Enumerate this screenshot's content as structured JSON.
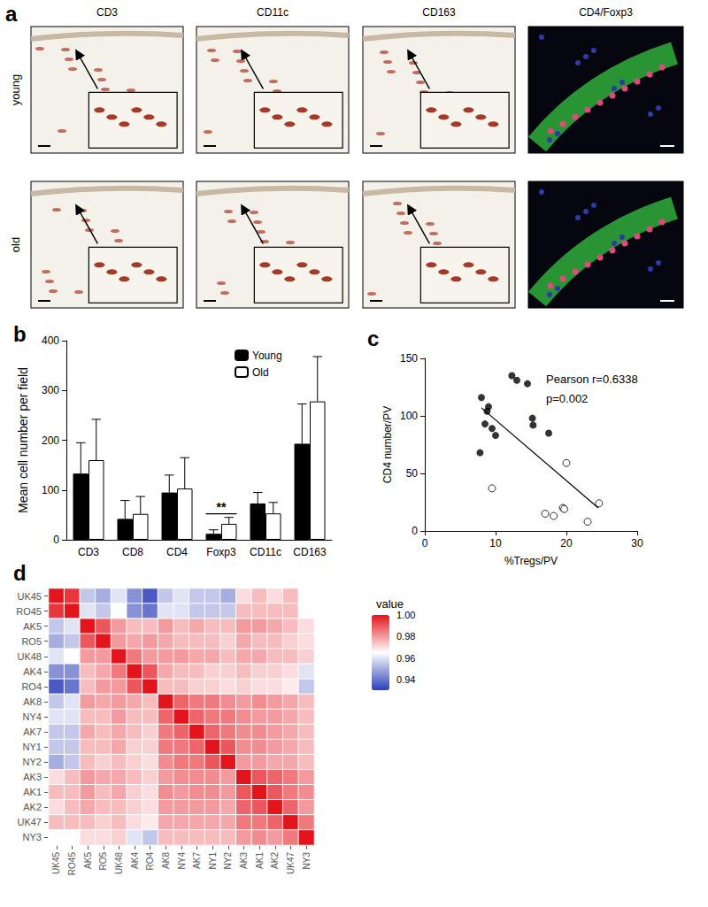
{
  "figure_panel_a": {
    "letter": "a",
    "columns": [
      "CD3",
      "CD11c",
      "CD163",
      "CD4/Foxp3"
    ],
    "rows": [
      "young",
      "old"
    ]
  },
  "chart_data": [
    {
      "panel": "b",
      "type": "bar",
      "categories": [
        "CD3",
        "CD8",
        "CD4",
        "Foxp3",
        "CD11c",
        "CD163"
      ],
      "series": [
        {
          "name": "Young",
          "color": "#000000",
          "values": [
            133,
            42,
            95,
            12,
            73,
            193
          ],
          "errors": [
            62,
            37,
            35,
            8,
            22,
            80
          ]
        },
        {
          "name": "Old",
          "color": "#ffffff",
          "values": [
            160,
            52,
            103,
            32,
            53,
            278
          ],
          "errors": [
            82,
            35,
            62,
            13,
            22,
            90
          ]
        }
      ],
      "ylabel": "Mean cell number per field",
      "ylim": [
        0,
        400
      ],
      "yticks": [
        0,
        100,
        200,
        300,
        400
      ],
      "legend": "upper right",
      "grid": false,
      "annotations": [
        {
          "text": "**",
          "category": "Foxp3"
        }
      ]
    },
    {
      "panel": "c",
      "type": "scatter",
      "xlabel": "%Tregs/PV",
      "ylabel": "CD4 number/PV",
      "xlim": [
        0,
        30
      ],
      "xticks": [
        0,
        10,
        20,
        30
      ],
      "ylim": [
        0,
        150
      ],
      "yticks": [
        0,
        50,
        100,
        150
      ],
      "grid": false,
      "annotations": [
        "Pearson r=0.6338",
        "p=0.002"
      ],
      "series": [
        {
          "type": "scatter",
          "marker": "filled",
          "color": "#000000",
          "x": [
            7.8,
            8,
            8.5,
            8.8,
            9,
            9.5,
            10,
            12.3,
            13,
            14.5,
            15.2,
            15.3,
            17.5
          ],
          "values": [
            68,
            116,
            93,
            104,
            108,
            89,
            83,
            135,
            131,
            128,
            98,
            92,
            85
          ]
        },
        {
          "type": "scatter",
          "marker": "open",
          "color": "#000000",
          "x": [
            9.5,
            17,
            18.2,
            19.5,
            19.7,
            20,
            23,
            24.6
          ],
          "values": [
            37,
            15,
            13,
            20,
            19,
            59,
            8,
            24
          ]
        },
        {
          "type": "line",
          "color": "#000000",
          "x": [
            8,
            24.5
          ],
          "values": [
            107,
            20
          ]
        }
      ]
    },
    {
      "panel": "d",
      "type": "heatmap",
      "rows": [
        "UK45",
        "RO45",
        "AK5",
        "RO5",
        "UK48",
        "AK4",
        "RO4",
        "AK8",
        "NY4",
        "AK7",
        "NY1",
        "NY2",
        "AK3",
        "AK1",
        "AK2",
        "UK47",
        "NY3"
      ],
      "columns": [
        "UK45",
        "RO45",
        "AK5",
        "RO5",
        "UK48",
        "AK4",
        "RO4",
        "AK8",
        "NY4",
        "AK7",
        "NY1",
        "NY2",
        "AK3",
        "AK1",
        "AK2",
        "UK47",
        "NY3"
      ],
      "cells": [
        [
          1,
          0.995,
          0.955,
          0.95,
          0.96,
          0.945,
          0.935,
          0.955,
          0.96,
          0.955,
          0.955,
          0.95,
          0.97,
          0.975,
          0.97,
          0.975,
          0.965
        ],
        [
          0.995,
          1,
          0.96,
          0.955,
          0.965,
          0.945,
          0.94,
          0.96,
          0.96,
          0.955,
          0.955,
          0.955,
          0.975,
          0.975,
          0.975,
          0.975,
          0.965
        ],
        [
          0.955,
          0.96,
          1,
          0.99,
          0.98,
          0.975,
          0.975,
          0.98,
          0.975,
          0.978,
          0.975,
          0.975,
          0.98,
          0.98,
          0.978,
          0.975,
          0.97
        ],
        [
          0.95,
          0.955,
          0.99,
          1,
          0.98,
          0.978,
          0.98,
          0.978,
          0.975,
          0.975,
          0.975,
          0.972,
          0.978,
          0.975,
          0.975,
          0.972,
          0.97
        ],
        [
          0.96,
          0.965,
          0.98,
          0.98,
          1,
          0.985,
          0.98,
          0.98,
          0.98,
          0.978,
          0.978,
          0.975,
          0.978,
          0.978,
          0.975,
          0.975,
          0.972
        ],
        [
          0.945,
          0.945,
          0.975,
          0.978,
          0.985,
          1,
          0.99,
          0.978,
          0.975,
          0.975,
          0.972,
          0.972,
          0.975,
          0.972,
          0.972,
          0.97,
          0.96
        ],
        [
          0.935,
          0.94,
          0.975,
          0.98,
          0.98,
          0.99,
          1,
          0.975,
          0.975,
          0.972,
          0.972,
          0.97,
          0.972,
          0.97,
          0.97,
          0.968,
          0.955
        ],
        [
          0.955,
          0.96,
          0.98,
          0.978,
          0.98,
          0.978,
          0.975,
          1,
          0.988,
          0.985,
          0.985,
          0.982,
          0.98,
          0.982,
          0.98,
          0.978,
          0.975
        ],
        [
          0.96,
          0.96,
          0.975,
          0.975,
          0.98,
          0.975,
          0.975,
          0.988,
          1,
          0.988,
          0.985,
          0.985,
          0.982,
          0.98,
          0.98,
          0.978,
          0.975
        ],
        [
          0.955,
          0.955,
          0.978,
          0.975,
          0.978,
          0.975,
          0.972,
          0.985,
          0.988,
          1,
          0.988,
          0.985,
          0.982,
          0.982,
          0.98,
          0.978,
          0.975
        ],
        [
          0.955,
          0.955,
          0.975,
          0.975,
          0.978,
          0.972,
          0.972,
          0.985,
          0.985,
          0.988,
          1,
          0.99,
          0.982,
          0.982,
          0.98,
          0.978,
          0.975
        ],
        [
          0.95,
          0.955,
          0.975,
          0.972,
          0.975,
          0.972,
          0.97,
          0.982,
          0.985,
          0.985,
          0.99,
          1,
          0.98,
          0.98,
          0.978,
          0.978,
          0.975
        ],
        [
          0.97,
          0.975,
          0.98,
          0.978,
          0.978,
          0.975,
          0.972,
          0.98,
          0.982,
          0.982,
          0.982,
          0.98,
          1,
          0.99,
          0.988,
          0.985,
          0.98
        ],
        [
          0.975,
          0.975,
          0.98,
          0.975,
          0.978,
          0.972,
          0.97,
          0.982,
          0.98,
          0.982,
          0.982,
          0.98,
          0.99,
          1,
          0.99,
          0.985,
          0.982
        ],
        [
          0.97,
          0.975,
          0.978,
          0.975,
          0.975,
          0.972,
          0.97,
          0.98,
          0.98,
          0.98,
          0.98,
          0.978,
          0.988,
          0.99,
          1,
          0.988,
          0.98
        ],
        [
          0.975,
          0.975,
          0.975,
          0.972,
          0.975,
          0.97,
          0.968,
          0.978,
          0.978,
          0.978,
          0.978,
          0.978,
          0.985,
          0.985,
          0.988,
          1,
          0.985
        ],
        [
          0.965,
          0.965,
          0.97,
          0.97,
          0.972,
          0.96,
          0.955,
          0.975,
          0.975,
          0.975,
          0.975,
          0.975,
          0.98,
          0.982,
          0.98,
          0.985,
          1
        ]
      ],
      "colorbar_title": "value",
      "colorbar_range": [
        0.93,
        1.0
      ],
      "colorbar_ticks": [
        0.94,
        0.96,
        0.98,
        {
          "value": 1.0,
          "label": "1.00"
        }
      ]
    }
  ]
}
